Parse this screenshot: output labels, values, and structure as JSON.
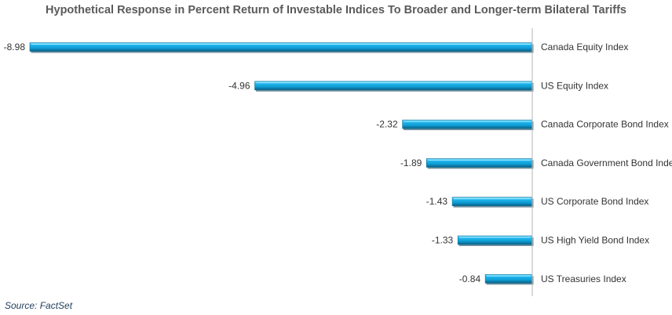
{
  "title": "Hypothetical Response in Percent Return of Investable Indices To Broader and Longer-term Bilateral Tariffs",
  "source": "Source: FactSet",
  "colors": {
    "bar_top": "#1fb6ee",
    "bar_mid": "#12a3d9",
    "bar_bottom": "#0a5f85",
    "bar_edge": "#4fd0ff",
    "axis": "#b5b5b5",
    "title": "#5a5a5a",
    "source": "#1f3b5c"
  },
  "chart_data": {
    "type": "bar",
    "orientation": "horizontal",
    "title": "Hypothetical Response in Percent Return of Investable Indices To Broader and Longer-term Bilateral Tariffs",
    "xlabel": "",
    "ylabel": "",
    "xlim": [
      -8.98,
      0
    ],
    "grid": false,
    "legend": "none",
    "categories": [
      "Canada Equity Index",
      "US Equity Index",
      "Canada Corporate Bond Index",
      "Canada Government Bond Index",
      "US Corporate Bond Index",
      "US High Yield Bond Index",
      "US Treasuries Index"
    ],
    "values": [
      -8.98,
      -4.96,
      -2.32,
      -1.89,
      -1.43,
      -1.33,
      -0.84
    ],
    "value_labels": [
      "-8.98",
      "-4.96",
      "-2.32",
      "-1.89",
      "-1.43",
      "-1.33",
      "-0.84"
    ]
  }
}
